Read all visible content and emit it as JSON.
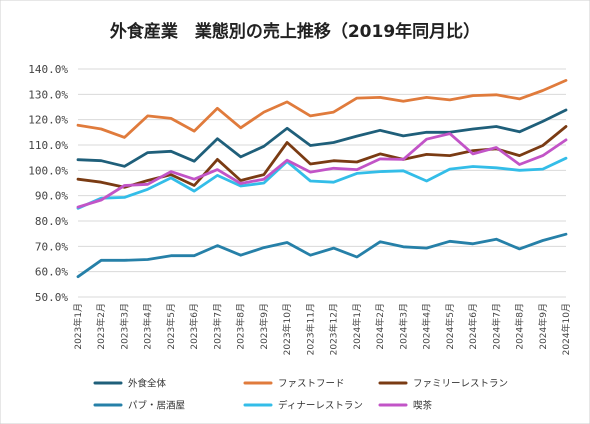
{
  "chart_data": {
    "type": "line",
    "title": "外食産業　業態別の売上推移（2019年同月比）",
    "y_tick_labels": [
      "50.0%",
      "60.0%",
      "70.0%",
      "80.0%",
      "90.0%",
      "100.0%",
      "110.0%",
      "120.0%",
      "130.0%",
      "140.0%"
    ],
    "ylim": [
      50,
      140
    ],
    "grid": true,
    "legend_position": "bottom",
    "categories": [
      "2023年1月",
      "2023年2月",
      "2023年3月",
      "2023年4月",
      "2023年5月",
      "2023年6月",
      "2023年7月",
      "2023年8月",
      "2023年9月",
      "2023年10月",
      "2023年11月",
      "2023年12月",
      "2024年1月",
      "2024年2月",
      "2024年3月",
      "2024年4月",
      "2024年5月",
      "2024年6月",
      "2024年7月",
      "2024年8月",
      "2024年9月",
      "2024年10月"
    ],
    "series": [
      {
        "name": "外食全体",
        "color": "#1f5f7a",
        "values": [
          104.2,
          103.8,
          101.6,
          107.0,
          107.5,
          103.6,
          112.5,
          105.3,
          109.5,
          116.6,
          109.8,
          111.0,
          113.5,
          115.8,
          113.6,
          115.0,
          115.0,
          116.3,
          117.3,
          115.2,
          119.3,
          123.8
        ]
      },
      {
        "name": "ファストフード",
        "color": "#e07b3c",
        "values": [
          117.8,
          116.3,
          113.0,
          121.5,
          120.5,
          115.5,
          124.5,
          116.8,
          123.0,
          127.0,
          121.5,
          123.0,
          128.5,
          128.8,
          127.3,
          128.8,
          127.8,
          129.5,
          129.8,
          128.2,
          131.5,
          135.5
        ]
      },
      {
        "name": "ファミリーレストラン",
        "color": "#7a3b13",
        "values": [
          96.5,
          95.3,
          93.3,
          96.0,
          98.3,
          94.0,
          104.3,
          96.0,
          98.3,
          111.0,
          102.5,
          103.8,
          103.3,
          106.5,
          104.3,
          106.3,
          105.8,
          107.8,
          108.5,
          105.8,
          109.8,
          117.3
        ]
      },
      {
        "name": "パブ・居酒屋",
        "color": "#2680a8",
        "values": [
          58.0,
          64.5,
          64.5,
          64.8,
          66.3,
          66.3,
          70.3,
          66.5,
          69.5,
          71.5,
          66.5,
          69.3,
          65.8,
          71.8,
          69.8,
          69.3,
          72.0,
          71.0,
          72.8,
          69.0,
          72.3,
          74.8
        ]
      },
      {
        "name": "ディナーレストラン",
        "color": "#33bde8",
        "values": [
          85.0,
          89.0,
          89.3,
          92.5,
          97.0,
          91.8,
          98.0,
          93.8,
          95.0,
          103.5,
          95.8,
          95.3,
          98.8,
          99.5,
          99.8,
          95.8,
          100.5,
          101.5,
          101.0,
          100.0,
          100.5,
          104.8
        ]
      },
      {
        "name": "喫茶",
        "color": "#c254c7",
        "values": [
          85.5,
          88.3,
          94.0,
          94.5,
          99.5,
          96.5,
          100.3,
          94.8,
          96.5,
          104.0,
          99.3,
          100.8,
          100.3,
          104.5,
          104.3,
          112.3,
          114.5,
          106.5,
          109.0,
          102.3,
          105.8,
          112.0
        ]
      }
    ]
  }
}
